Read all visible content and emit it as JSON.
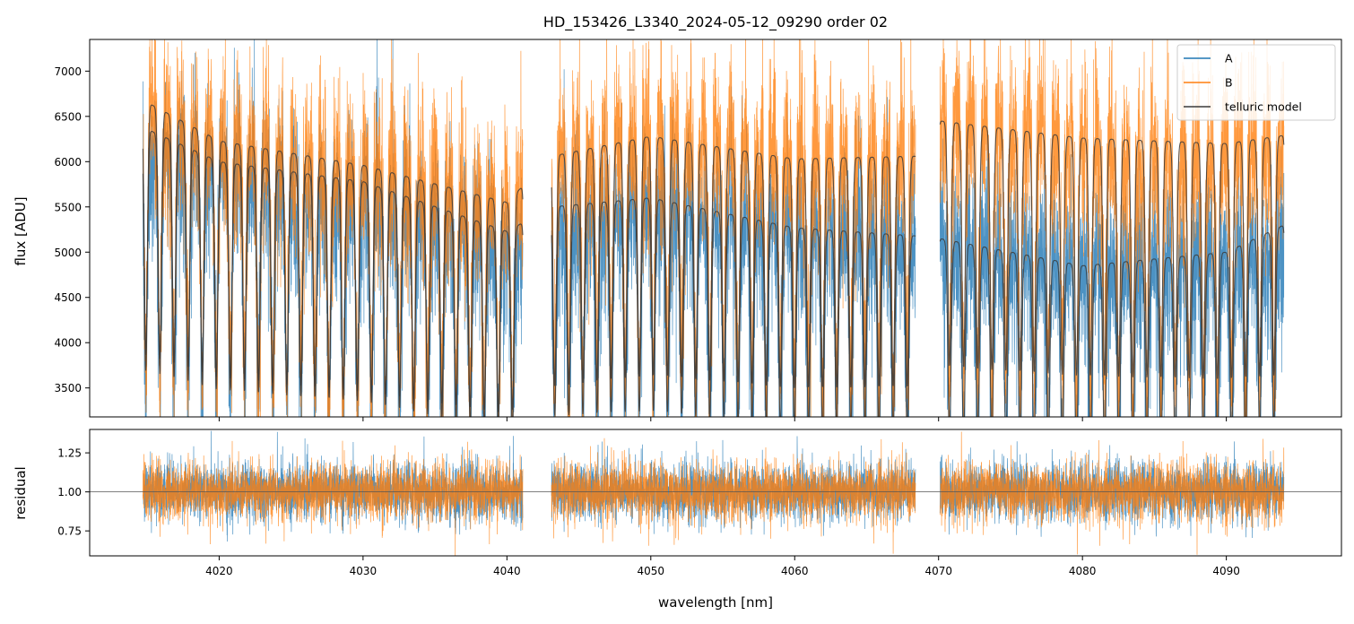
{
  "figure": {
    "title": "HD_153426_L3340_2024-05-12_09290  order 02"
  },
  "chart_data": [
    {
      "type": "line",
      "panel": "top",
      "title": "HD_153426_L3340_2024-05-12_09290  order 02",
      "xlabel": "",
      "ylabel": "flux [ADU]",
      "xlim": [
        4011,
        4098
      ],
      "ylim": [
        3180,
        7350
      ],
      "yticks": [
        3500,
        4000,
        4500,
        5000,
        5500,
        6000,
        6500,
        7000
      ],
      "xticks": [
        4020,
        4030,
        4040,
        4050,
        4060,
        4070,
        4080,
        4090
      ],
      "grid": false,
      "legend_position": "top-right",
      "segments_nm": [
        [
          4014.7,
          4041.1
        ],
        [
          4043.1,
          4068.4
        ],
        [
          4070.1,
          4094.0
        ]
      ],
      "series": [
        {
          "name": "A",
          "color": "#1f77b4",
          "continuum_points": [
            [
              4014.7,
              6050
            ],
            [
              4020,
              5900
            ],
            [
              4030,
              5450
            ],
            [
              4040,
              5050
            ],
            [
              4043.1,
              5150
            ],
            [
              4050,
              5560
            ],
            [
              4060,
              5200
            ],
            [
              4068.4,
              5150
            ],
            [
              4070.1,
              5150
            ],
            [
              4080,
              4800
            ],
            [
              4090,
              4950
            ],
            [
              4094,
              5000
            ]
          ],
          "noise_sigma": 600
        },
        {
          "name": "B",
          "color": "#ff7f0e",
          "continuum_points": [
            [
              4014.7,
              6600
            ],
            [
              4020,
              6200
            ],
            [
              4030,
              5900
            ],
            [
              4040,
              5550
            ],
            [
              4043.1,
              6100
            ],
            [
              4050,
              6250
            ],
            [
              4060,
              6050
            ],
            [
              4068.4,
              6050
            ],
            [
              4070.1,
              6450
            ],
            [
              4080,
              6200
            ],
            [
              4090,
              6000
            ],
            [
              4094,
              6300
            ]
          ],
          "noise_sigma": 650
        },
        {
          "name": "telluric model",
          "color": "#3a3a3a",
          "models_of": [
            "A",
            "B"
          ],
          "continuum_A": [
            [
              4014.7,
              6380
            ],
            [
              4020,
              6000
            ],
            [
              4030,
              5780
            ],
            [
              4040,
              5230
            ],
            [
              4043.1,
              5500
            ],
            [
              4050,
              5600
            ],
            [
              4060,
              5270
            ],
            [
              4068.4,
              5180
            ],
            [
              4070.1,
              5150
            ],
            [
              4080,
              4850
            ],
            [
              4090,
              5000
            ],
            [
              4094,
              5300
            ]
          ],
          "continuum_B": [
            [
              4014.7,
              6680
            ],
            [
              4020,
              6230
            ],
            [
              4030,
              5960
            ],
            [
              4040,
              5550
            ],
            [
              4043.1,
              6060
            ],
            [
              4050,
              6280
            ],
            [
              4060,
              6030
            ],
            [
              4068.4,
              6060
            ],
            [
              4070.1,
              6450
            ],
            [
              4080,
              6260
            ],
            [
              4090,
              6200
            ],
            [
              4094,
              6290
            ]
          ],
          "line_spacing_nm": 0.98,
          "line_depth_fraction": 0.42
        }
      ]
    },
    {
      "type": "line",
      "panel": "bottom",
      "xlabel": "wavelength [nm]",
      "ylabel": "residual",
      "xlim": [
        4011,
        4098
      ],
      "ylim": [
        0.59,
        1.4
      ],
      "yticks": [
        0.75,
        1.0,
        1.25
      ],
      "ytick_labels": [
        "0.75",
        "1.00",
        "1.25"
      ],
      "xticks": [
        4020,
        4030,
        4040,
        4050,
        4060,
        4070,
        4080,
        4090
      ],
      "reference_line": 1.0,
      "grid": false,
      "series": [
        {
          "name": "A",
          "color": "#1f77b4",
          "center": 1.0,
          "noise_sigma": 0.12
        },
        {
          "name": "B",
          "color": "#ff7f0e",
          "center": 1.0,
          "noise_sigma": 0.12
        }
      ]
    }
  ],
  "legend": {
    "items": [
      {
        "label": "A",
        "color": "#1f77b4"
      },
      {
        "label": "B",
        "color": "#ff7f0e"
      },
      {
        "label": "telluric model",
        "color": "#3a3a3a"
      }
    ]
  }
}
